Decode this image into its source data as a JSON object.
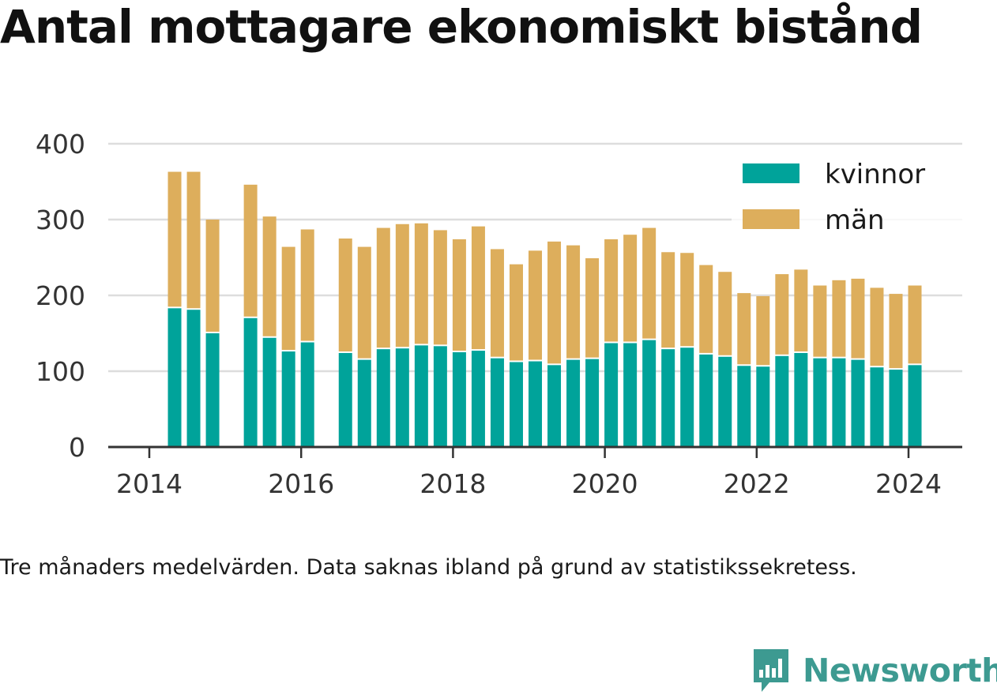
{
  "title": "Antal mottagare ekonomiskt bistånd",
  "note": "Tre månaders medelvärden. Data saknas ibland på grund av statistikssekretess.",
  "brand": {
    "name": "Newsworthy",
    "icon": "newsworthy-logo-icon",
    "color": "#3d9a91"
  },
  "colors": {
    "kvinnor": "#00a39a",
    "man": "#ddae5c",
    "grid": "#dddddd",
    "axis": "#333333"
  },
  "chart_data": {
    "type": "bar",
    "stacked": true,
    "grid": true,
    "legend_position": "top-right",
    "ylim": [
      0,
      400
    ],
    "yticks": [
      0,
      100,
      200,
      300,
      400
    ],
    "xticks": [
      "2014",
      "2016",
      "2018",
      "2020",
      "2022",
      "2024"
    ],
    "x": [
      "2014-05",
      "2014-08",
      "2014-11",
      "2015-05",
      "2015-08",
      "2015-11",
      "2016-02",
      "2016-08",
      "2016-11",
      "2017-02",
      "2017-05",
      "2017-08",
      "2017-11",
      "2018-02",
      "2018-05",
      "2018-08",
      "2018-11",
      "2019-02",
      "2019-05",
      "2019-08",
      "2019-11",
      "2020-02",
      "2020-05",
      "2020-08",
      "2020-11",
      "2021-02",
      "2021-05",
      "2021-08",
      "2021-11",
      "2022-02",
      "2022-05",
      "2022-08",
      "2022-11",
      "2023-02",
      "2023-05",
      "2023-08",
      "2023-11",
      "2024-02"
    ],
    "series": [
      {
        "name": "kvinnor",
        "values": [
          183,
          181,
          150,
          170,
          144,
          126,
          138,
          124,
          115,
          129,
          130,
          134,
          133,
          125,
          127,
          117,
          112,
          113,
          108,
          115,
          116,
          137,
          137,
          141,
          129,
          131,
          122,
          119,
          107,
          106,
          120,
          124,
          117,
          117,
          115,
          105,
          102,
          108
        ]
      },
      {
        "name": "män",
        "values": [
          180,
          182,
          150,
          176,
          160,
          138,
          149,
          151,
          149,
          160,
          164,
          161,
          153,
          149,
          164,
          144,
          129,
          146,
          163,
          151,
          133,
          137,
          143,
          148,
          128,
          125,
          118,
          112,
          96,
          93,
          108,
          110,
          96,
          103,
          107,
          105,
          100,
          105
        ]
      }
    ]
  }
}
